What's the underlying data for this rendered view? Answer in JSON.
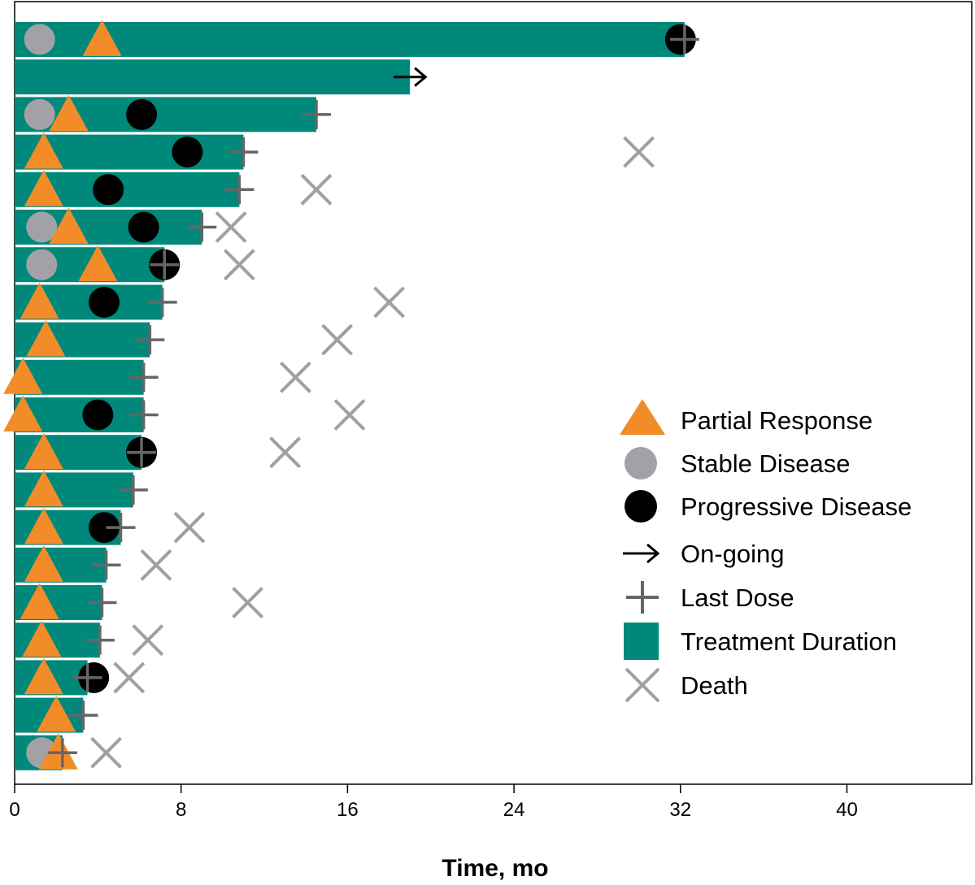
{
  "chart_data": {
    "type": "swimmer",
    "xlabel": "Time, mo",
    "xlim": [
      0,
      46
    ],
    "xticks": [
      0,
      8,
      16,
      24,
      32,
      40
    ],
    "colors": {
      "treatment": "#00897b",
      "partial_response": "#f28c28",
      "stable_disease": "#a2a2a6",
      "progressive_disease": "#000000",
      "last_dose": "#666666",
      "death": "#a0a0a0",
      "ongoing": "#000000"
    },
    "legend": [
      {
        "key": "pr",
        "label": "Partial Response"
      },
      {
        "key": "sd",
        "label": "Stable Disease"
      },
      {
        "key": "pd",
        "label": "Progressive Disease"
      },
      {
        "key": "ongoing",
        "label": "On-going"
      },
      {
        "key": "lastdose",
        "label": "Last Dose"
      },
      {
        "key": "treatment",
        "label": "Treatment Duration"
      },
      {
        "key": "death",
        "label": "Death"
      }
    ],
    "patients": [
      {
        "duration": 32.2,
        "sd": 1.2,
        "pr": 4.2,
        "pd": 32.0,
        "last_dose": 32.2,
        "death": null,
        "ongoing": false
      },
      {
        "duration": 19.0,
        "sd": null,
        "pr": null,
        "pd": null,
        "last_dose": null,
        "death": null,
        "ongoing": true
      },
      {
        "duration": 14.5,
        "sd": 1.2,
        "pr": 2.6,
        "pd": 6.1,
        "last_dose": 14.5,
        "death": null,
        "ongoing": false
      },
      {
        "duration": 11.0,
        "sd": null,
        "pr": 1.4,
        "pd": 8.3,
        "last_dose": 11.0,
        "death": 30.0,
        "ongoing": false
      },
      {
        "duration": 10.8,
        "sd": null,
        "pr": 1.4,
        "pd": 4.5,
        "last_dose": 10.8,
        "death": 14.5,
        "ongoing": false
      },
      {
        "duration": 9.0,
        "sd": 1.3,
        "pr": 2.6,
        "pd": 6.2,
        "last_dose": 9.0,
        "death": 10.4,
        "ongoing": false
      },
      {
        "duration": 7.2,
        "sd": 1.3,
        "pr": 4.0,
        "pd": 7.2,
        "last_dose": 7.2,
        "death": 10.8,
        "ongoing": false
      },
      {
        "duration": 7.1,
        "sd": null,
        "pr": 1.2,
        "pd": 4.3,
        "last_dose": 7.1,
        "death": 18.0,
        "ongoing": false
      },
      {
        "duration": 6.5,
        "sd": null,
        "pr": 1.5,
        "pd": null,
        "last_dose": 6.5,
        "death": 15.5,
        "ongoing": false
      },
      {
        "duration": 6.2,
        "sd": null,
        "pr": 0.4,
        "pd": null,
        "last_dose": 6.2,
        "death": 13.5,
        "ongoing": false
      },
      {
        "duration": 6.2,
        "sd": null,
        "pr": 0.4,
        "pd": 4.0,
        "last_dose": 6.2,
        "death": 16.1,
        "ongoing": false
      },
      {
        "duration": 6.1,
        "sd": null,
        "pr": 1.4,
        "pd": 6.1,
        "last_dose": 6.1,
        "death": 13.0,
        "ongoing": false
      },
      {
        "duration": 5.7,
        "sd": null,
        "pr": 1.4,
        "pd": null,
        "last_dose": 5.7,
        "death": null,
        "ongoing": false
      },
      {
        "duration": 5.1,
        "sd": null,
        "pr": 1.4,
        "pd": 4.3,
        "last_dose": 5.1,
        "death": 8.4,
        "ongoing": false
      },
      {
        "duration": 4.4,
        "sd": null,
        "pr": 1.4,
        "pd": null,
        "last_dose": 4.4,
        "death": 6.8,
        "ongoing": false
      },
      {
        "duration": 4.2,
        "sd": null,
        "pr": 1.2,
        "pd": null,
        "last_dose": 4.2,
        "death": 11.2,
        "ongoing": false
      },
      {
        "duration": 4.1,
        "sd": null,
        "pr": 1.3,
        "pd": null,
        "last_dose": 4.1,
        "death": 6.4,
        "ongoing": false
      },
      {
        "duration": 3.5,
        "sd": null,
        "pr": 1.4,
        "pd": 3.8,
        "last_dose": 3.5,
        "death": 5.5,
        "ongoing": false
      },
      {
        "duration": 3.3,
        "sd": null,
        "pr": 2.0,
        "pd": null,
        "last_dose": 3.3,
        "death": null,
        "ongoing": false
      },
      {
        "duration": 2.3,
        "sd": 1.3,
        "pr": 2.1,
        "pd": null,
        "last_dose": 2.3,
        "death": 4.4,
        "ongoing": false
      }
    ]
  }
}
